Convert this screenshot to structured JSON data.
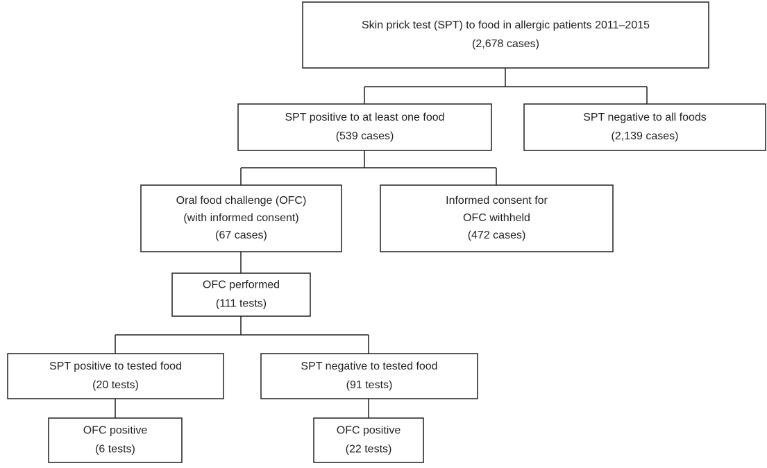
{
  "nodes": [
    {
      "lines": [
        "Skin prick test (SPT) to food in allergic patients 2011–2015",
        "(2,678 cases)"
      ]
    },
    {
      "lines": [
        "SPT positive to at least one food",
        "(539 cases)"
      ]
    },
    {
      "lines": [
        "SPT negative to all foods",
        "(2,139 cases)"
      ]
    },
    {
      "lines": [
        "Oral food challenge (OFC)",
        "(with informed consent)",
        "(67 cases)"
      ]
    },
    {
      "lines": [
        "Informed consent for",
        "OFC withheld",
        "(472 cases)"
      ]
    },
    {
      "lines": [
        "OFC performed",
        "(111 tests)"
      ]
    },
    {
      "lines": [
        "SPT positive to tested food",
        "(20 tests)"
      ]
    },
    {
      "lines": [
        "SPT negative to tested food",
        "(91 tests)"
      ]
    },
    {
      "lines": [
        "OFC positive",
        "(6 tests)"
      ]
    },
    {
      "lines": [
        "OFC positive",
        "(22 tests)"
      ]
    }
  ]
}
